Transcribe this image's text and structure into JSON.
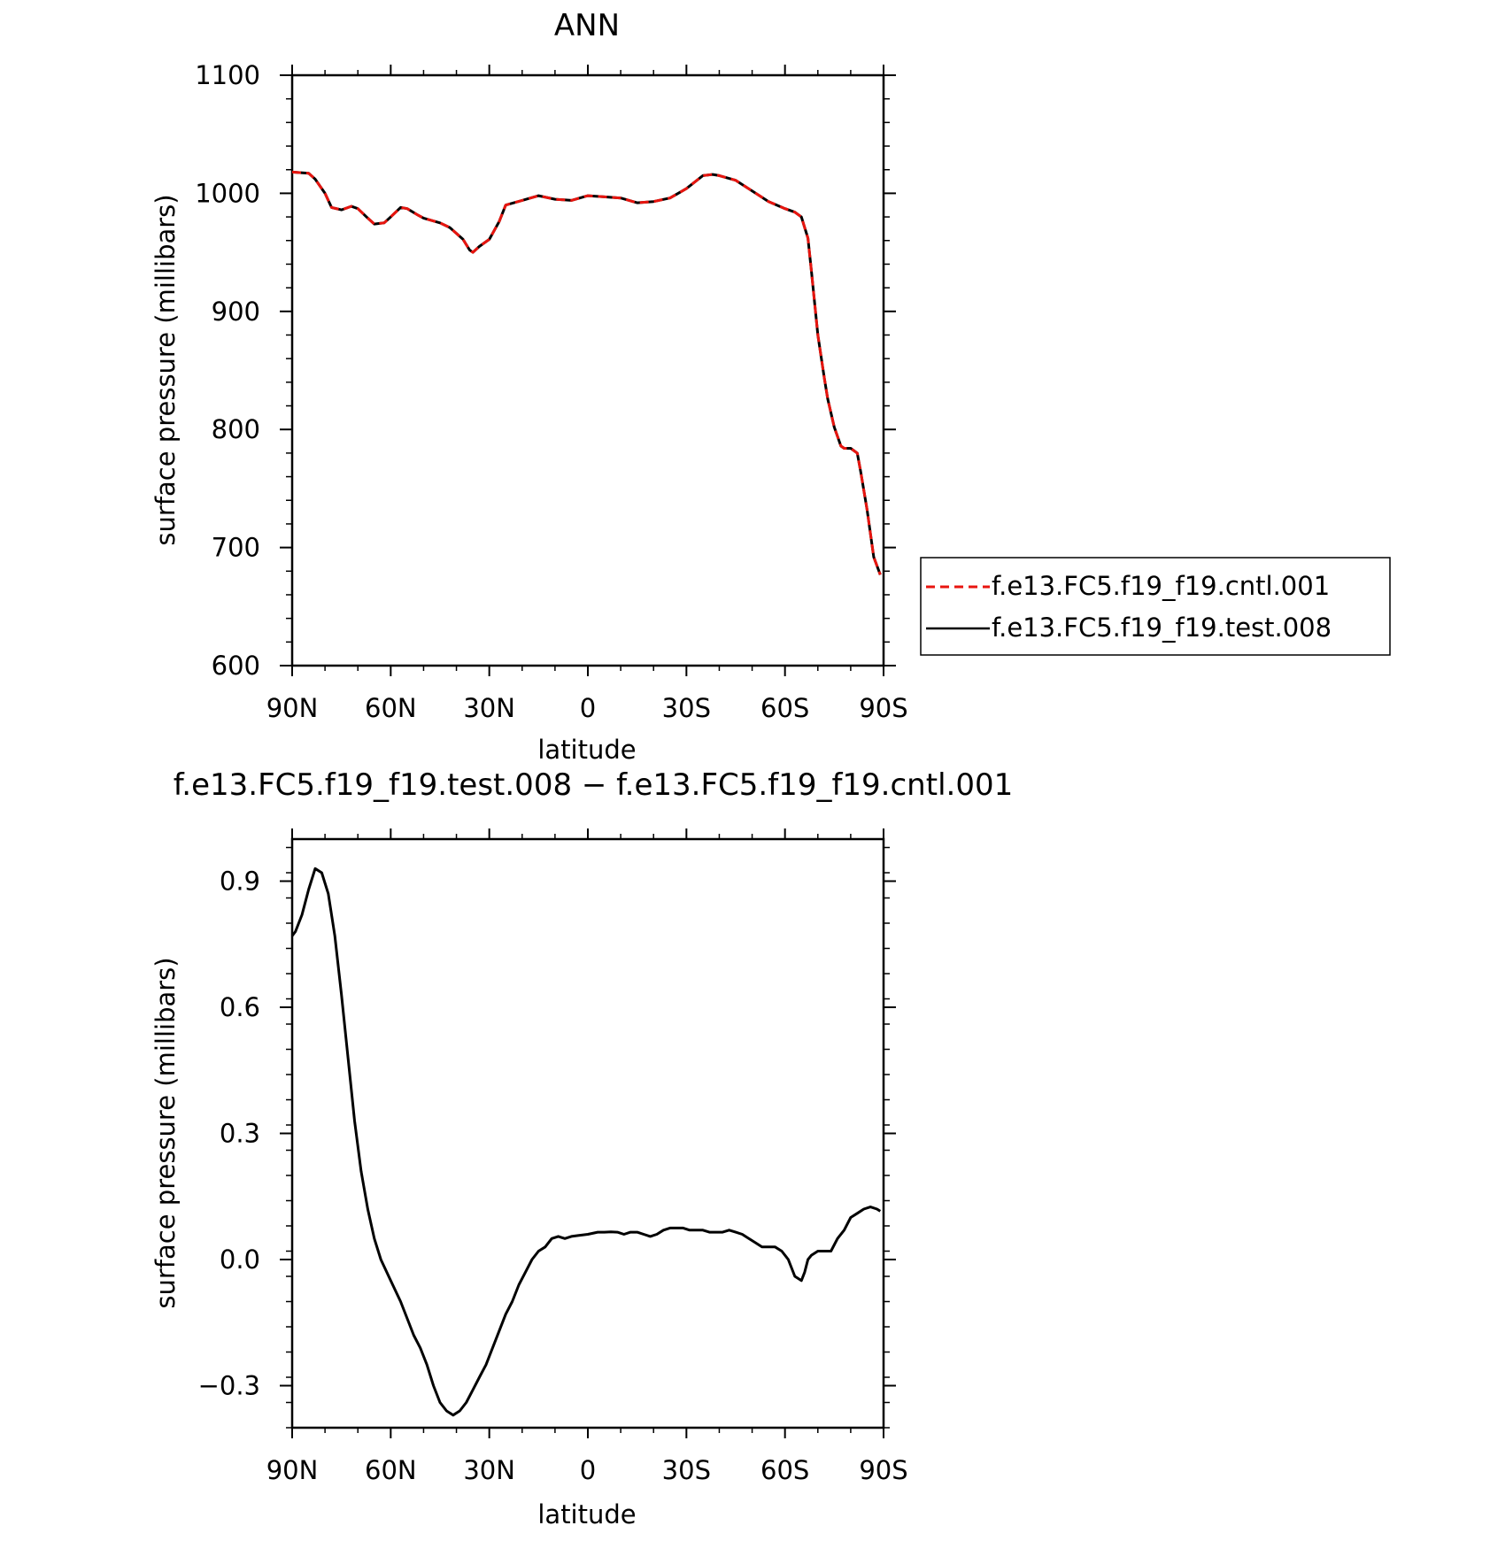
{
  "chart_data": [
    {
      "type": "line",
      "title": "ANN",
      "xlabel": "latitude",
      "ylabel": "surface pressure (millibars)",
      "xlim": [
        90,
        -90
      ],
      "ylim": [
        600,
        1100
      ],
      "x_ticks": [
        90,
        60,
        30,
        0,
        -30,
        -60,
        -90
      ],
      "x_tick_labels": [
        "90N",
        "60N",
        "30N",
        "0",
        "30S",
        "60S",
        "90S"
      ],
      "y_ticks": [
        600,
        700,
        800,
        900,
        1000,
        1100
      ],
      "y_tick_labels": [
        "600",
        "700",
        "800",
        "900",
        "1000",
        "1100"
      ],
      "legend_position": "right",
      "series": [
        {
          "name": "f.e13.FC5.f19_f19.cntl.001",
          "color": "#e8150f",
          "style": "dashed",
          "x": [
            90,
            85,
            83,
            80,
            78,
            75,
            72,
            70,
            67,
            65,
            62,
            60,
            57,
            55,
            52,
            50,
            45,
            42,
            40,
            38,
            36,
            35,
            33,
            30,
            27,
            25,
            20,
            15,
            10,
            5,
            0,
            -5,
            -10,
            -15,
            -20,
            -25,
            -30,
            -35,
            -38,
            -40,
            -45,
            -50,
            -55,
            -60,
            -63,
            -65,
            -67,
            -68,
            -70,
            -72,
            -73,
            -75,
            -77,
            -78,
            -80,
            -82,
            -83,
            -85,
            -87,
            -89
          ],
          "y": [
            1018,
            1017,
            1012,
            1000,
            988,
            986,
            989,
            987,
            979,
            974,
            975,
            980,
            988,
            987,
            982,
            979,
            975,
            971,
            966,
            961,
            952,
            950,
            955,
            961,
            976,
            990,
            994,
            998,
            995,
            994,
            998,
            997,
            996,
            992,
            993,
            996,
            1004,
            1015,
            1016,
            1015,
            1011,
            1002,
            993,
            987,
            984,
            980,
            962,
            935,
            880,
            843,
            826,
            802,
            786,
            784,
            784,
            780,
            765,
            732,
            692,
            677
          ]
        },
        {
          "name": "f.e13.FC5.f19_f19.test.008",
          "color": "#000000",
          "style": "solid",
          "x": [
            90,
            85,
            83,
            80,
            78,
            75,
            72,
            70,
            67,
            65,
            62,
            60,
            57,
            55,
            52,
            50,
            45,
            42,
            40,
            38,
            36,
            35,
            33,
            30,
            27,
            25,
            20,
            15,
            10,
            5,
            0,
            -5,
            -10,
            -15,
            -20,
            -25,
            -30,
            -35,
            -38,
            -40,
            -45,
            -50,
            -55,
            -60,
            -63,
            -65,
            -67,
            -68,
            -70,
            -72,
            -73,
            -75,
            -77,
            -78,
            -80,
            -82,
            -83,
            -85,
            -87,
            -89
          ],
          "y": [
            1018,
            1017,
            1012,
            1000,
            988,
            986,
            989,
            987,
            979,
            974,
            975,
            980,
            988,
            987,
            982,
            979,
            975,
            971,
            966,
            961,
            952,
            950,
            955,
            961,
            976,
            990,
            994,
            998,
            995,
            994,
            998,
            997,
            996,
            992,
            993,
            996,
            1004,
            1015,
            1016,
            1015,
            1011,
            1002,
            993,
            987,
            984,
            980,
            962,
            935,
            880,
            843,
            826,
            802,
            786,
            784,
            784,
            780,
            765,
            732,
            692,
            677
          ]
        }
      ]
    },
    {
      "type": "line",
      "title": "f.e13.FC5.f19_f19.test.008 − f.e13.FC5.f19_f19.cntl.001",
      "xlabel": "latitude",
      "ylabel": "surface pressure (millibars)",
      "xlim": [
        90,
        -90
      ],
      "ylim": [
        -0.4,
        1.0
      ],
      "x_ticks": [
        90,
        60,
        30,
        0,
        -30,
        -60,
        -90
      ],
      "x_tick_labels": [
        "90N",
        "60N",
        "30N",
        "0",
        "30S",
        "60S",
        "90S"
      ],
      "y_ticks": [
        -0.3,
        0.0,
        0.3,
        0.6,
        0.9
      ],
      "y_tick_labels": [
        "−0.3",
        "0.0",
        "0.3",
        "0.6",
        "0.9"
      ],
      "series": [
        {
          "color": "#000000",
          "style": "solid",
          "x": [
            90,
            89,
            87,
            85,
            83,
            81,
            79,
            77,
            75,
            73,
            71,
            69,
            67,
            65,
            63,
            60,
            57,
            55,
            53,
            51,
            49,
            47,
            45,
            43,
            41,
            39,
            37,
            35,
            33,
            31,
            29,
            27,
            25,
            23,
            21,
            19,
            17,
            15,
            13,
            11,
            9,
            7,
            5,
            3,
            0,
            -3,
            -5,
            -7,
            -9,
            -11,
            -13,
            -15,
            -17,
            -19,
            -21,
            -23,
            -25,
            -27,
            -29,
            -31,
            -33,
            -35,
            -37,
            -39,
            -41,
            -43,
            -45,
            -47,
            -49,
            -51,
            -53,
            -55,
            -57,
            -59,
            -61,
            -62,
            -63,
            -65,
            -66,
            -67,
            -68,
            -70,
            -72,
            -74,
            -76,
            -78,
            -80,
            -82,
            -84,
            -86,
            -88,
            -89
          ],
          "y": [
            0.77,
            0.78,
            0.82,
            0.88,
            0.93,
            0.92,
            0.87,
            0.77,
            0.63,
            0.48,
            0.33,
            0.21,
            0.12,
            0.05,
            0.0,
            -0.05,
            -0.1,
            -0.14,
            -0.18,
            -0.21,
            -0.25,
            -0.3,
            -0.34,
            -0.36,
            -0.37,
            -0.36,
            -0.34,
            -0.31,
            -0.28,
            -0.25,
            -0.21,
            -0.17,
            -0.13,
            -0.1,
            -0.06,
            -0.03,
            0.0,
            0.02,
            0.03,
            0.05,
            0.055,
            0.05,
            0.055,
            0.057,
            0.06,
            0.065,
            0.065,
            0.066,
            0.065,
            0.06,
            0.065,
            0.065,
            0.06,
            0.055,
            0.06,
            0.07,
            0.075,
            0.075,
            0.075,
            0.07,
            0.07,
            0.07,
            0.065,
            0.065,
            0.065,
            0.07,
            0.065,
            0.06,
            0.05,
            0.04,
            0.03,
            0.03,
            0.03,
            0.02,
            0.0,
            -0.02,
            -0.04,
            -0.05,
            -0.03,
            0.0,
            0.01,
            0.02,
            0.02,
            0.02,
            0.05,
            0.07,
            0.1,
            0.11,
            0.12,
            0.125,
            0.12,
            0.115
          ]
        }
      ]
    }
  ]
}
